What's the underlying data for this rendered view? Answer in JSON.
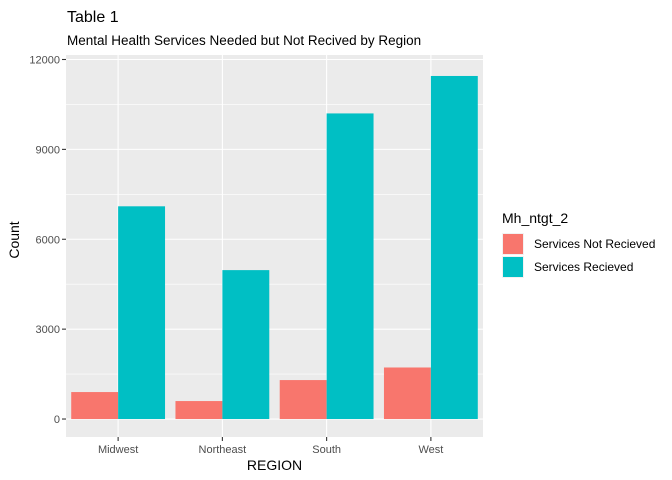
{
  "chart_data": {
    "type": "bar",
    "title": "Table 1",
    "subtitle": "Mental Health Services Needed but Not Recived by Region",
    "xlabel": "REGION",
    "ylabel": "Count",
    "categories": [
      "Midwest",
      "Northeast",
      "South",
      "West"
    ],
    "series": [
      {
        "name": "Services Not Recieved",
        "color": "#f8766d",
        "values": [
          900,
          600,
          1300,
          1720
        ]
      },
      {
        "name": "Services Recieved",
        "color": "#00bfc4",
        "values": [
          7100,
          4970,
          10200,
          11450
        ]
      }
    ],
    "ylim": [
      -600,
      12150
    ],
    "yticks": [
      0,
      3000,
      6000,
      9000,
      12000
    ],
    "ytick_labels": [
      "0",
      "3000",
      "6000",
      "9000",
      "12000"
    ],
    "legend_title": "Mh_ntgt_2",
    "legend_position": "right",
    "grid": true,
    "panel_background": "#ebebeb",
    "grid_color": "#ffffff"
  }
}
